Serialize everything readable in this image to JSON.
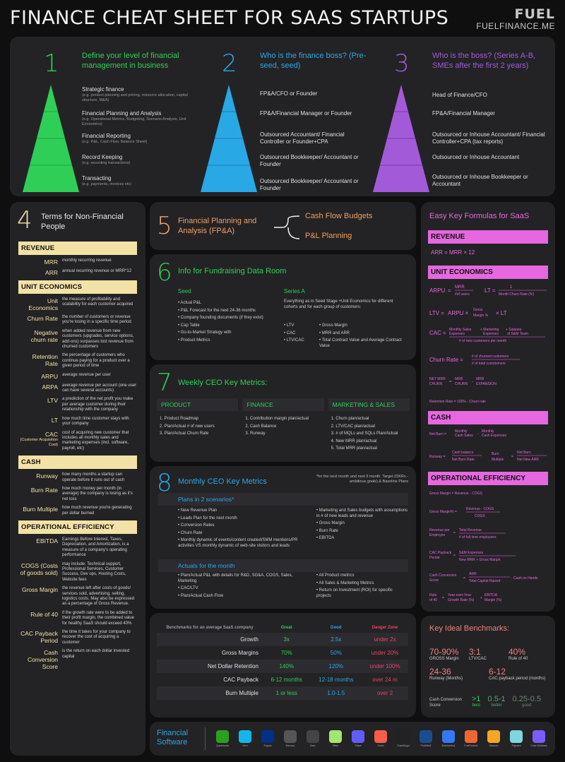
{
  "header": {
    "title": "FINANCE CHEAT SHEET FOR SAAS STARTUPS",
    "brand": "FUEL",
    "url": "FUELFINANCE.ME"
  },
  "pyramids": [
    {
      "num": "1",
      "title": "Define your level of financial management in business",
      "color": "#2fcf57",
      "levels": [
        {
          "t": "Strategic finance",
          "s": "(e.g. product planning and pricing, resource allocation, capital structure, M&A)"
        },
        {
          "t": "Financial Planning and Analysis",
          "s": "(e.g. Operational Metrics, Budgeting, Scenario Analysis, Unit Economics)"
        },
        {
          "t": "Financial Reporting",
          "s": "(e.g. P&L, Cash Flow, Balance Sheet)"
        },
        {
          "t": "Record Keeping",
          "s": "(e.g. recording transactions)"
        },
        {
          "t": "Transacting",
          "s": "(e.g. payments, invoices etc)"
        }
      ]
    },
    {
      "num": "2",
      "title": "Who is the finance boss? (Pre-seed, seed)",
      "color": "#29a8e6",
      "levels": [
        {
          "t": "FP&A/CFO or Founder"
        },
        {
          "t": "FP&A/Financial Manager or Founder"
        },
        {
          "t": "Outsourced Accountant/ Financial Controller or Founder+CPA"
        },
        {
          "t": "Outsourced Bookkeeper/ Accountant or Founder"
        },
        {
          "t": "Outsourced Bookkeeper/ Accountant or Founder"
        }
      ]
    },
    {
      "num": "3",
      "title": "Who is the boss? (Series A-B, SMEs after the first 2 years)",
      "color": "#a35ad9",
      "levels": [
        {
          "t": "Head of Finance/CFO"
        },
        {
          "t": "FP&A/Financial Manager"
        },
        {
          "t": "Outsourced or Inhouse Accountant/ Financial Controller+CPA (tax reports)"
        },
        {
          "t": "Outsourced or Inhouse Accountant"
        },
        {
          "t": "Outsourced or Inhouse Bookkeeper or Accountant"
        }
      ]
    }
  ],
  "terms": {
    "num": "4",
    "title": "Terms for Non-Financial People",
    "groups": [
      {
        "name": "REVENUE",
        "items": [
          {
            "t": "MRR",
            "d": "monthly recurring revenue"
          },
          {
            "t": "ARR",
            "d": "annual recurring revenue or MRR*12"
          }
        ]
      },
      {
        "name": "UNIT ECONOMICS",
        "items": [
          {
            "t": "Unit Economics",
            "d": "the measure of profitability and scalability for each customer acquired"
          },
          {
            "t": "Churn Rate",
            "d": "the number of customers or revenue you're losing in a specific time period"
          },
          {
            "t": "Negative churn rate",
            "d": "when added revenue from new customers (upgrades, service options, add-ons) surpasses lost revenue from churned customers"
          },
          {
            "t": "Retention Rate",
            "d": "the percentage of customers who continue paying for a product over a given period of time"
          },
          {
            "t": "ARPU",
            "d": "average revenue per user"
          },
          {
            "t": "ARPA",
            "d": "average revenue per account (one user can have several accounts)"
          },
          {
            "t": "LTV",
            "d": "a prediction of the net profit you make per average customer during their relationship with the company"
          },
          {
            "t": "LT",
            "d": "how much time customer stays with your company"
          },
          {
            "t": "CAC",
            "sub": "(Customer Acquisition Cost)",
            "d": "cost of acquiring new customer that includes all monthly sales and marketing expenses (incl. software, payroll, etc)"
          }
        ]
      },
      {
        "name": "CASH",
        "items": [
          {
            "t": "Runway",
            "d": "how many months a startup can operate before it runs out of cash"
          },
          {
            "t": "Burn Rate",
            "d": "how much money per month (in average) the company is losing as it's net loss"
          },
          {
            "t": "Burn Multiple",
            "d": "how much revenue you're generating per dollar burned"
          }
        ]
      },
      {
        "name": "OPERATIONAL EFFICIENCY",
        "items": [
          {
            "t": "EBITDA",
            "d": "Earnings Before Interest, Taxes, Depreciation, and Amortization, is a measure of a company's operating performance"
          },
          {
            "t": "COGS (Costs of goods sold)",
            "d": "may include: Technical support, Professional Services, Customer Success, Dev ops, Hosting Costs, Website fees"
          },
          {
            "t": "Gross Margin",
            "d": "the revenue left after costs of goods/ services sold, advertising, selling, logistics costs. May also be expressed as a percentage of Gross Revenue."
          },
          {
            "t": "Rule of 40",
            "d": "if the growth rate were to be added to their profit margin, the combined value for healthy SaaS should exceed 40%"
          },
          {
            "t": "CAC Payback Period",
            "d": "the time it takes for your company to recover the cost of acquiring a customer"
          },
          {
            "t": "Cash Conversion Score",
            "d": "is the return on each dollar invested capital"
          }
        ]
      }
    ]
  },
  "fpa": {
    "num": "5",
    "title": "Financial Planning and Analysis (FP&A)",
    "items": [
      "Cash Flow Budgets",
      "P&L Planning"
    ]
  },
  "fund": {
    "num": "6",
    "title": "Info for Fundraising Data Room",
    "seed_h": "Seed",
    "seed": [
      "Actual P&L",
      "P&L Forecast for the next 24-36 months",
      "Company founding documents (if they exist)",
      "Cap Table",
      "Go-to-Market Strategy with",
      "Product Metrics"
    ],
    "a_h": "Series A",
    "a_intro": "Everything as in Seed Stage +Unit Economics for different cohorts and for each group of customers:",
    "a1": [
      "LTV",
      "CAC",
      "LTV/CAC"
    ],
    "a2": [
      "Gross Margin",
      "MRR and ARR",
      "Total Contract Value and Average Contract Value"
    ]
  },
  "weekly": {
    "num": "7",
    "title": "Weekly CEO Key Metrics:",
    "cols": [
      {
        "h": "PRODUCT",
        "items": [
          "1. Product Roadmap",
          "2. Plan/Actual # of new users",
          "3. Plan/Actual Churn Rate"
        ]
      },
      {
        "h": "FINANCE",
        "items": [
          "1. Contribution margin plan/actual",
          "2. Cash Balance",
          "3. Runway"
        ]
      },
      {
        "h": "MARKETING & SALES",
        "items": [
          "1. Churn plan/actual",
          "2. LTV/CAC plan/actual",
          "3. # of MQLs and SQLs Plan/Actual",
          "4. New MRR plan/actual",
          "5. Total MRR plan/actual"
        ]
      }
    ]
  },
  "monthly": {
    "num": "8",
    "title": "Monthly CEO Key Metrics",
    "note": "*for the next month and next 6 month. Target (OKRs - ambitious goals) & Baseline Plans",
    "plans_h": "Plans in 2 scenarios*",
    "plans1": [
      "New Revenue Plan",
      "Leads Plan for the next month",
      "Conversion Rates",
      "Churn Rate",
      "Monthly dynamic of events/content created/SMM mentions/PR activities VS monthly dynamic of web-site visitors and leads"
    ],
    "plans2": [
      "Marketing and Sales budgets with assumptions in # of new leads and revenue",
      "Gross Margin",
      "Burn Rate",
      "EBITDA"
    ],
    "act_h": "Actuals for the month",
    "act1": [
      "Plan/Actual P&L with details for R&D, SG&A, COGS, Sales, Marketing",
      "CAC/LTV",
      "Plan/Actual Cash Flow"
    ],
    "act2": [
      "All Product metrics",
      "All Sales & Marketing Metrics",
      "Return on Investment (ROI) for specific projects"
    ]
  },
  "bench": {
    "headers": [
      "Benchmarks for an average SaaS company",
      "Great",
      "Good",
      "Danger Zone"
    ],
    "rows": [
      [
        "Growth",
        "3x",
        "2.5x",
        "under 2x"
      ],
      [
        "Gross Margins",
        "70%",
        "50%",
        "under 20%"
      ],
      [
        "Net Dollar Retention",
        "140%",
        "120%",
        "under 100%"
      ],
      [
        "CAC Payback",
        "6-12 months",
        "12-18 months",
        "over 24 m"
      ],
      [
        "Burn Multiple",
        "1 or less",
        "1.0-1.5",
        "over 2"
      ]
    ]
  },
  "software": {
    "title": "Financial Software",
    "logos": [
      "Quickbooks",
      "Xero",
      "Paypal",
      "Mercury",
      "Brex",
      "Wise",
      "Stripe",
      "Gusto",
      "ChartMogul",
      "ProfitWell",
      "Baremetrics",
      "FuelFinance",
      "Abacum",
      "Pigment",
      "Cube Software"
    ]
  },
  "formulas": {
    "title": "Easy Key Formulas for SaaS",
    "rev_h": "REVENUE",
    "ue_h": "UNIT ECONOMICS",
    "cash_h": "CASH",
    "oe_h": "OPERATIONAL EFFICIENCY",
    "arr": "ARR = MRR × 12"
  },
  "ideal": {
    "title": "Key Ideal Benchmarks:",
    "items": [
      {
        "v": "70-90%",
        "l": "GROSS Margin"
      },
      {
        "v": "3:1",
        "l": "LTV/CAC"
      },
      {
        "v": "40%",
        "l": "Rule of 40"
      },
      {
        "v": "24-36",
        "l": "Runway (Months)"
      },
      {
        "v": "6-12",
        "l": "CAC payback period (months)"
      }
    ],
    "ccs_l": "Cash Conversion Score",
    "ccs": [
      {
        "v": ">1",
        "l": "best"
      },
      {
        "v": "0.5-1",
        "l": "better"
      },
      {
        "v": "0.25-0.5",
        "l": "good"
      }
    ]
  },
  "colors": {
    "green": "#2fcf57",
    "blue": "#29a8e6",
    "purple": "#a35ad9",
    "yellow": "#f3e2a6",
    "pink": "#e667e0",
    "orange": "#f0a060"
  }
}
